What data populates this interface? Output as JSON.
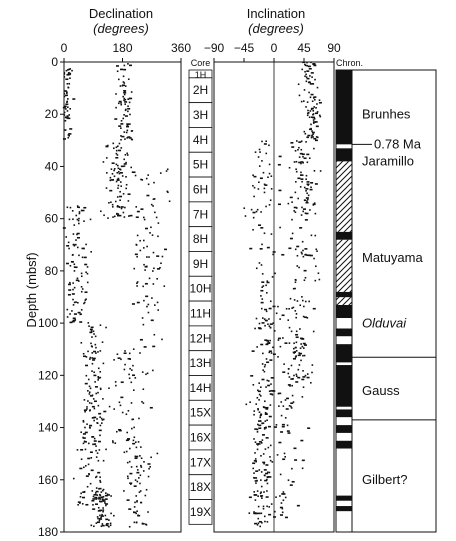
{
  "chart_data": {
    "type": "scatter",
    "panels": {
      "declination": {
        "title": "Declination",
        "unit": "(degrees)",
        "xlim": [
          0,
          360
        ],
        "ticks": [
          "0",
          "180",
          "360"
        ],
        "seed": 11,
        "clusters": [
          {
            "x": 10,
            "spread": 22,
            "y0": 2,
            "y1": 30,
            "n": 55
          },
          {
            "x": 185,
            "spread": 40,
            "y0": 0,
            "y1": 30,
            "n": 70
          },
          {
            "x": 165,
            "spread": 60,
            "y0": 30,
            "y1": 60,
            "n": 90
          },
          {
            "x": 40,
            "spread": 60,
            "y0": 55,
            "y1": 100,
            "n": 100
          },
          {
            "x": 260,
            "spread": 90,
            "y0": 40,
            "y1": 110,
            "n": 90
          },
          {
            "x": 90,
            "spread": 50,
            "y0": 100,
            "y1": 140,
            "n": 95
          },
          {
            "x": 200,
            "spread": 100,
            "y0": 110,
            "y1": 150,
            "n": 70
          },
          {
            "x": 80,
            "spread": 60,
            "y0": 140,
            "y1": 170,
            "n": 70
          },
          {
            "x": 230,
            "spread": 60,
            "y0": 150,
            "y1": 178,
            "n": 60
          },
          {
            "x": 120,
            "spread": 40,
            "y0": 163,
            "y1": 178,
            "n": 70
          }
        ]
      },
      "inclination": {
        "title": "Inclination",
        "unit": "(degrees)",
        "xlim": [
          -90,
          90
        ],
        "ticks": [
          "−90",
          "−45",
          "0",
          "45",
          "90"
        ],
        "seed": 29,
        "clusters": [
          {
            "x": 55,
            "spread": 20,
            "y0": 0,
            "y1": 30,
            "n": 90
          },
          {
            "x": 45,
            "spread": 30,
            "y0": 30,
            "y1": 60,
            "n": 80
          },
          {
            "x": -15,
            "spread": 35,
            "y0": 30,
            "y1": 90,
            "n": 70
          },
          {
            "x": 40,
            "spread": 40,
            "y0": 60,
            "y1": 110,
            "n": 80
          },
          {
            "x": -10,
            "spread": 30,
            "y0": 90,
            "y1": 120,
            "n": 60
          },
          {
            "x": 35,
            "spread": 35,
            "y0": 105,
            "y1": 125,
            "n": 50
          },
          {
            "x": -20,
            "spread": 25,
            "y0": 120,
            "y1": 178,
            "n": 150
          },
          {
            "x": 20,
            "spread": 35,
            "y0": 125,
            "y1": 175,
            "n": 60
          }
        ]
      }
    },
    "yaxis": {
      "label": "Depth (mbsf)",
      "ylim": [
        0,
        180
      ],
      "ticks": [
        "0",
        "20",
        "40",
        "60",
        "80",
        "100",
        "120",
        "140",
        "160",
        "180"
      ]
    },
    "cores": {
      "header": "Core",
      "items": [
        {
          "label": "1H",
          "top": 0,
          "bottom": 3
        },
        {
          "label": "2H",
          "top": 3,
          "bottom": 12.5
        },
        {
          "label": "3H",
          "top": 12.5,
          "bottom": 22
        },
        {
          "label": "4H",
          "top": 22,
          "bottom": 31.5
        },
        {
          "label": "5H",
          "top": 31.5,
          "bottom": 41
        },
        {
          "label": "6H",
          "top": 41,
          "bottom": 50.5
        },
        {
          "label": "7H",
          "top": 50.5,
          "bottom": 60
        },
        {
          "label": "8H",
          "top": 60,
          "bottom": 69.5
        },
        {
          "label": "9H",
          "top": 69.5,
          "bottom": 79
        },
        {
          "label": "10H",
          "top": 79,
          "bottom": 88.5
        },
        {
          "label": "11H",
          "top": 88.5,
          "bottom": 98
        },
        {
          "label": "12H",
          "top": 98,
          "bottom": 107.5
        },
        {
          "label": "13H",
          "top": 107.5,
          "bottom": 117
        },
        {
          "label": "14H",
          "top": 117,
          "bottom": 126.5
        },
        {
          "label": "15X",
          "top": 126.5,
          "bottom": 136
        },
        {
          "label": "16X",
          "top": 136,
          "bottom": 145.5
        },
        {
          "label": "17X",
          "top": 145.5,
          "bottom": 155
        },
        {
          "label": "18X",
          "top": 155,
          "bottom": 164.5
        },
        {
          "label": "19X",
          "top": 164.5,
          "bottom": 174
        }
      ]
    },
    "chron": {
      "header": "Chron.",
      "intervals": [
        {
          "top": 0,
          "bottom": 28.5,
          "fill": "black"
        },
        {
          "top": 28.5,
          "bottom": 30,
          "fill": "white"
        },
        {
          "top": 30,
          "bottom": 35,
          "fill": "black"
        },
        {
          "top": 35,
          "bottom": 62,
          "fill": "hatch"
        },
        {
          "top": 62,
          "bottom": 65,
          "fill": "black"
        },
        {
          "top": 65,
          "bottom": 85,
          "fill": "hatch"
        },
        {
          "top": 85,
          "bottom": 87,
          "fill": "black"
        },
        {
          "top": 87,
          "bottom": 90,
          "fill": "hatch"
        },
        {
          "top": 90,
          "bottom": 95,
          "fill": "black"
        },
        {
          "top": 95,
          "bottom": 99,
          "fill": "white"
        },
        {
          "top": 99,
          "bottom": 102,
          "fill": "black"
        },
        {
          "top": 102,
          "bottom": 105,
          "fill": "white"
        },
        {
          "top": 105,
          "bottom": 112,
          "fill": "black"
        },
        {
          "top": 112,
          "bottom": 113,
          "fill": "white"
        },
        {
          "top": 113,
          "bottom": 129,
          "fill": "black"
        },
        {
          "top": 129,
          "bottom": 130,
          "fill": "white"
        },
        {
          "top": 130,
          "bottom": 133,
          "fill": "black"
        },
        {
          "top": 133,
          "bottom": 136,
          "fill": "white"
        },
        {
          "top": 136,
          "bottom": 139,
          "fill": "black"
        },
        {
          "top": 139,
          "bottom": 142,
          "fill": "white"
        },
        {
          "top": 142,
          "bottom": 145,
          "fill": "black"
        },
        {
          "top": 145,
          "bottom": 163,
          "fill": "white"
        },
        {
          "top": 163,
          "bottom": 165,
          "fill": "black"
        },
        {
          "top": 165,
          "bottom": 167,
          "fill": "white"
        },
        {
          "top": 167,
          "bottom": 169,
          "fill": "black"
        },
        {
          "top": 169,
          "bottom": 180,
          "fill": "white"
        }
      ],
      "zones": [
        {
          "label": "Brunhes",
          "top": 0,
          "bottom": 28.5,
          "label_y": 17,
          "italic": false
        },
        {
          "label": "Jaramillo",
          "top": 28.5,
          "bottom": 35,
          "label_y": 35,
          "italic": false
        },
        {
          "label": "Matuyama",
          "top": 35,
          "bottom": 110,
          "label_y": 72,
          "italic": false
        },
        {
          "label": "Olduvai",
          "top": 0,
          "bottom": 0,
          "label_y": 97,
          "italic": true
        },
        {
          "label": "Gauss",
          "top": 110,
          "bottom": 134,
          "label_y": 123,
          "italic": false
        },
        {
          "label": "Gilbert?",
          "top": 134,
          "bottom": 180,
          "label_y": 157,
          "italic": false
        }
      ],
      "boundary": {
        "label": "0.78 Ma",
        "depth": 28.5
      }
    }
  }
}
